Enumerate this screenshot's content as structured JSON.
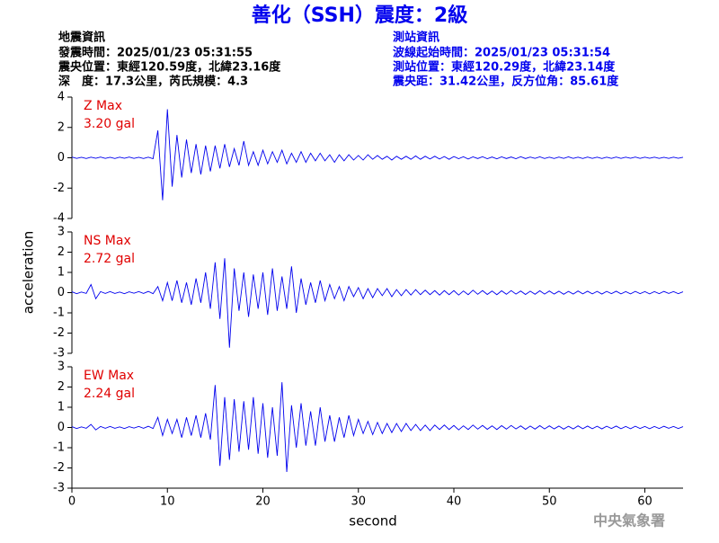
{
  "header": {
    "title": "善化（SSH）震度：2級",
    "left": [
      "地震資訊",
      "發震時間：2025/01/23 05:31:55",
      "震央位置：東經120.59度，北緯23.16度",
      "深　度：17.3公里，芮氏規模：4.3"
    ],
    "right": [
      "測站資訊",
      "波線起始時間：2025/01/23 05:31:54",
      "測站位置：東經120.29度，北緯23.14度",
      "震央距：31.42公里，反方位角：85.61度"
    ],
    "watermark": "中央氣象署"
  },
  "chart_data": {
    "type": "line",
    "xlabel": "second",
    "ylabel": "acceleration",
    "xlim": [
      0,
      64
    ],
    "xticks": [
      0,
      10,
      20,
      30,
      40,
      50,
      60
    ],
    "label_color": "#e00000",
    "x": [
      0,
      0.5,
      1,
      1.5,
      2,
      2.5,
      3,
      3.5,
      4,
      4.5,
      5,
      5.5,
      6,
      6.5,
      7,
      7.5,
      8,
      8.5,
      9,
      9.5,
      10,
      10.5,
      11,
      11.5,
      12,
      12.5,
      13,
      13.5,
      14,
      14.5,
      15,
      15.5,
      16,
      16.5,
      17,
      17.5,
      18,
      18.5,
      19,
      19.5,
      20,
      20.5,
      21,
      21.5,
      22,
      22.5,
      23,
      23.5,
      24,
      24.5,
      25,
      25.5,
      26,
      26.5,
      27,
      27.5,
      28,
      28.5,
      29,
      29.5,
      30,
      30.5,
      31,
      31.5,
      32,
      32.5,
      33,
      33.5,
      34,
      34.5,
      35,
      35.5,
      36,
      36.5,
      37,
      37.5,
      38,
      38.5,
      39,
      39.5,
      40,
      40.5,
      41,
      41.5,
      42,
      42.5,
      43,
      43.5,
      44,
      44.5,
      45,
      45.5,
      46,
      46.5,
      47,
      47.5,
      48,
      48.5,
      49,
      49.5,
      50,
      50.5,
      51,
      51.5,
      52,
      52.5,
      53,
      53.5,
      54,
      54.5,
      55,
      55.5,
      56,
      56.5,
      57,
      57.5,
      58,
      58.5,
      59,
      59.5,
      60,
      60.5,
      61,
      61.5,
      62,
      62.5,
      63,
      63.5,
      64
    ],
    "panels": [
      {
        "name": "Z Max",
        "max_label": "3.20 gal",
        "color": "#0000ee",
        "ylim": [
          -4,
          4
        ],
        "yticks": [
          -4,
          -2,
          0,
          2,
          4
        ],
        "values": [
          0.05,
          -0.04,
          0.03,
          -0.05,
          0.04,
          -0.03,
          0.05,
          -0.04,
          0.03,
          -0.05,
          0.04,
          -0.03,
          0.05,
          -0.04,
          0.03,
          -0.05,
          0.04,
          -0.06,
          1.8,
          -2.8,
          3.2,
          -1.9,
          1.5,
          -1.3,
          1.2,
          -1.0,
          0.9,
          -1.1,
          0.8,
          -0.9,
          0.8,
          -0.7,
          0.9,
          -0.6,
          0.6,
          -0.5,
          1.1,
          -0.5,
          0.4,
          -0.5,
          0.5,
          -0.4,
          0.4,
          -0.3,
          0.5,
          -0.4,
          0.3,
          -0.3,
          0.4,
          -0.3,
          0.3,
          -0.2,
          0.3,
          -0.2,
          0.2,
          -0.3,
          0.2,
          -0.2,
          0.2,
          -0.15,
          0.15,
          -0.15,
          0.2,
          -0.1,
          0.15,
          -0.1,
          0.1,
          -0.15,
          0.1,
          -0.1,
          0.1,
          -0.1,
          0.12,
          -0.1,
          0.1,
          -0.08,
          0.1,
          -0.08,
          0.08,
          -0.1,
          0.08,
          -0.06,
          0.07,
          -0.08,
          0.06,
          -0.05,
          0.07,
          -0.06,
          0.05,
          -0.07,
          0.06,
          -0.05,
          0.05,
          -0.06,
          0.07,
          -0.05,
          0.05,
          -0.04,
          0.06,
          -0.05,
          0.04,
          -0.05,
          0.05,
          -0.04,
          0.06,
          -0.04,
          0.04,
          -0.05,
          0.05,
          -0.04,
          0.04,
          -0.05,
          0.04,
          -0.04,
          0.05,
          -0.04,
          0.04,
          -0.03,
          0.05,
          -0.04,
          0.04,
          -0.03,
          0.04,
          -0.04,
          0.03,
          -0.04,
          0.04,
          -0.03,
          0.03
        ]
      },
      {
        "name": "NS Max",
        "max_label": "2.72 gal",
        "color": "#0000ee",
        "ylim": [
          -3,
          3
        ],
        "yticks": [
          -3,
          -2,
          -1,
          0,
          1,
          2,
          3
        ],
        "values": [
          0.04,
          -0.05,
          0.03,
          -0.04,
          0.4,
          -0.3,
          0.05,
          -0.04,
          0.05,
          -0.04,
          0.03,
          -0.05,
          0.04,
          -0.03,
          0.05,
          -0.04,
          0.06,
          -0.05,
          0.3,
          -0.4,
          0.5,
          -0.4,
          0.6,
          -0.5,
          0.5,
          -0.6,
          0.7,
          -0.5,
          1.0,
          -0.8,
          1.5,
          -1.3,
          1.7,
          -2.72,
          1.2,
          -0.9,
          1.0,
          -1.2,
          0.9,
          -0.8,
          1.0,
          -1.1,
          1.2,
          -0.9,
          0.8,
          -0.8,
          1.3,
          -1.0,
          0.7,
          -0.6,
          0.5,
          -0.5,
          0.6,
          -0.4,
          0.4,
          -0.3,
          0.3,
          -0.4,
          0.3,
          -0.2,
          0.25,
          -0.3,
          0.2,
          -0.25,
          0.2,
          -0.15,
          0.2,
          -0.2,
          0.15,
          -0.15,
          0.15,
          -0.12,
          0.15,
          -0.1,
          0.12,
          -0.1,
          0.1,
          -0.12,
          0.1,
          -0.1,
          0.1,
          -0.12,
          0.08,
          -0.1,
          0.12,
          -0.08,
          0.1,
          -0.09,
          0.08,
          -0.1,
          0.09,
          -0.08,
          0.1,
          -0.07,
          0.08,
          -0.09,
          0.07,
          -0.08,
          0.09,
          -0.07,
          0.08,
          -0.07,
          0.07,
          -0.08,
          0.06,
          -0.07,
          0.08,
          -0.06,
          0.07,
          -0.06,
          0.06,
          -0.07,
          0.06,
          -0.05,
          0.07,
          -0.06,
          0.05,
          -0.06,
          0.06,
          -0.05,
          0.05,
          -0.06,
          0.05,
          -0.05,
          0.06,
          -0.04,
          0.05,
          -0.05,
          0.04
        ]
      },
      {
        "name": "EW Max",
        "max_label": "2.24 gal",
        "color": "#0000ee",
        "ylim": [
          -3,
          3
        ],
        "yticks": [
          -3,
          -2,
          -1,
          0,
          1,
          2,
          3
        ],
        "values": [
          0.04,
          -0.05,
          0.03,
          -0.04,
          0.15,
          -0.12,
          0.05,
          -0.04,
          0.05,
          -0.04,
          0.03,
          -0.05,
          0.04,
          -0.03,
          0.05,
          -0.04,
          0.06,
          -0.05,
          0.5,
          -0.4,
          0.4,
          -0.3,
          0.4,
          -0.5,
          0.5,
          -0.4,
          0.6,
          -0.5,
          0.7,
          -0.6,
          2.1,
          -1.9,
          1.5,
          -1.6,
          1.4,
          -1.2,
          1.3,
          -1.1,
          1.5,
          -1.3,
          1.2,
          -1.5,
          1.0,
          -1.4,
          2.24,
          -2.2,
          1.1,
          -1.0,
          1.2,
          -0.9,
          0.8,
          -0.9,
          1.0,
          -0.7,
          0.6,
          -0.7,
          0.5,
          -0.5,
          0.6,
          -0.4,
          0.4,
          -0.3,
          0.3,
          -0.35,
          0.25,
          -0.3,
          0.2,
          -0.25,
          0.2,
          -0.2,
          0.2,
          -0.15,
          0.15,
          -0.15,
          0.12,
          -0.15,
          0.12,
          -0.1,
          0.12,
          -0.1,
          0.1,
          -0.12,
          0.08,
          -0.1,
          0.12,
          -0.08,
          0.1,
          -0.09,
          0.08,
          -0.1,
          0.09,
          -0.08,
          0.1,
          -0.07,
          0.08,
          -0.09,
          0.07,
          -0.08,
          0.09,
          -0.07,
          0.08,
          -0.07,
          0.07,
          -0.08,
          0.06,
          -0.07,
          0.08,
          -0.06,
          0.07,
          -0.06,
          0.06,
          -0.07,
          0.06,
          -0.05,
          0.07,
          -0.06,
          0.05,
          -0.06,
          0.06,
          -0.05,
          0.05,
          -0.06,
          0.05,
          -0.05,
          0.06,
          -0.04,
          0.05,
          -0.05,
          0.04
        ]
      }
    ]
  }
}
